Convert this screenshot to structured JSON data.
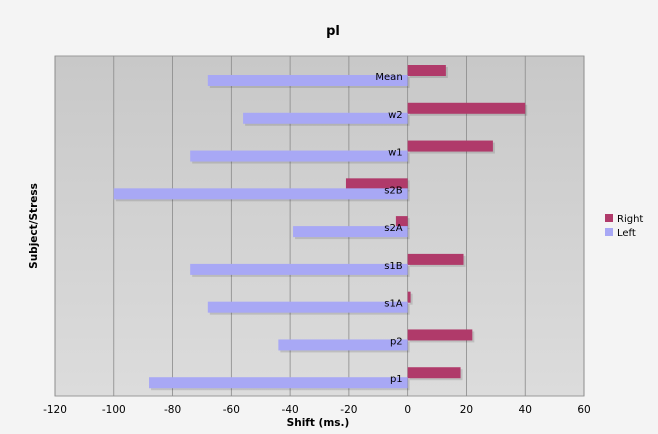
{
  "chart_data": {
    "type": "bar",
    "orientation": "horizontal",
    "title": "pl",
    "xlabel": "Shift (ms.)",
    "ylabel": "Subject/Stress",
    "categories": [
      "Mean",
      "w2",
      "w1",
      "s2B",
      "s2A",
      "s1B",
      "s1A",
      "p2",
      "p1"
    ],
    "series": [
      {
        "name": "Right",
        "color": "#b03a6a",
        "values": [
          13,
          40,
          29,
          -21,
          -4,
          19,
          1,
          22,
          18
        ]
      },
      {
        "name": "Left",
        "color": "#a8a8f5",
        "values": [
          -68,
          -56,
          -74,
          -100,
          -39,
          -74,
          -68,
          -44,
          -88
        ]
      }
    ],
    "xlim": [
      -120,
      60
    ],
    "xticks": [
      -120,
      -100,
      -80,
      -60,
      -40,
      -20,
      0,
      20,
      40,
      60
    ],
    "grid": true,
    "legend": "right"
  }
}
